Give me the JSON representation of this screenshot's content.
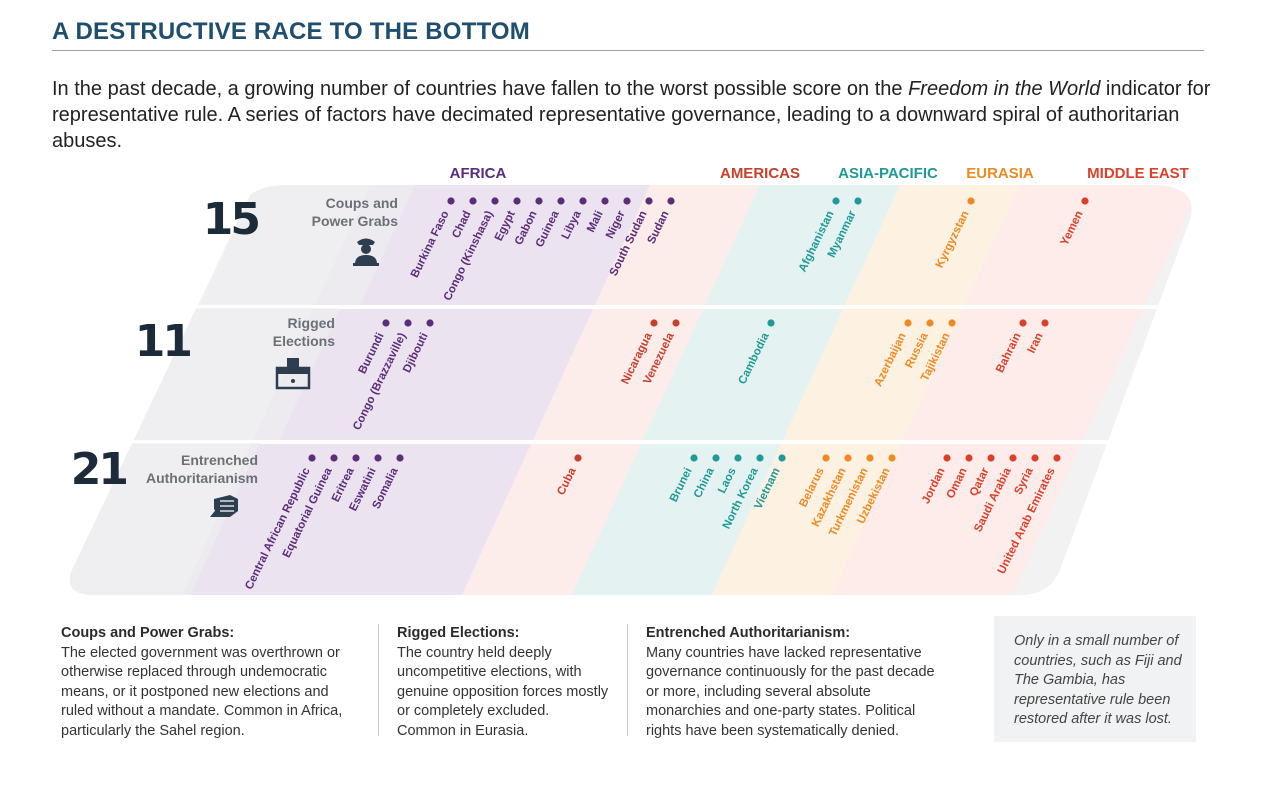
{
  "title": "A DESTRUCTIVE RACE TO THE BOTTOM",
  "intro": {
    "before": "In the past decade, a growing number of countries have fallen to the worst possible score on the ",
    "emph": "Freedom in the World",
    "after": " indicator for representative rule. A series of factors have decimated representative governance, leading to a downward spiral of authoritarian abuses."
  },
  "colors": {
    "africa": "#5b2d7a",
    "americas": "#c8402c",
    "asia": "#1f9a96",
    "eurasia": "#ee8a22",
    "middle_east": "#d9412b",
    "count": "#1c2b3a",
    "rowlabel": "#6b7077"
  },
  "regions": [
    {
      "key": "africa",
      "label": "AFRICA"
    },
    {
      "key": "americas",
      "label": "AMERICAS"
    },
    {
      "key": "asia",
      "label": "ASIA-PACIFIC"
    },
    {
      "key": "eurasia",
      "label": "EURASIA"
    },
    {
      "key": "middle_east",
      "label": "MIDDLE EAST"
    }
  ],
  "rows": [
    {
      "count": "15",
      "label_lines": [
        "Coups and",
        "Power Grabs"
      ],
      "icon": "soldier-icon",
      "countries": {
        "africa": [
          "Burkina Faso",
          "Chad",
          "Congo (Kinshasa)",
          "Egypt",
          "Gabon",
          "Guinea",
          "Libya",
          "Mali",
          "Niger",
          "South Sudan",
          "Sudan"
        ],
        "americas": [],
        "asia": [
          "Afghanistan",
          "Myanmar"
        ],
        "eurasia": [
          "Kyrgyzstan"
        ],
        "middle_east": [
          "Yemen"
        ]
      }
    },
    {
      "count": "11",
      "label_lines": [
        "Rigged",
        "Elections"
      ],
      "icon": "ballot-box-icon",
      "countries": {
        "africa": [
          "Burundi",
          "Congo (Brazzaville)",
          "Djibouti"
        ],
        "americas": [
          "Nicaragua",
          "Venezuela"
        ],
        "asia": [
          "Cambodia"
        ],
        "eurasia": [
          "Azerbaijan",
          "Russia",
          "Tajikistan"
        ],
        "middle_east": [
          "Bahrain",
          "Iran"
        ]
      }
    },
    {
      "count": "21",
      "label_lines": [
        "Entrenched",
        "Authoritarianism"
      ],
      "icon": "fist-icon",
      "countries": {
        "africa": [
          "Central African Republic",
          "Equatorial Guinea",
          "Eritrea",
          "Eswatini",
          "Somalia"
        ],
        "americas": [
          "Cuba"
        ],
        "asia": [
          "Brunei",
          "China",
          "Laos",
          "North Korea",
          "Vietnam"
        ],
        "eurasia": [
          "Belarus",
          "Kazakhstan",
          "Turkmenistan",
          "Uzbekistan"
        ],
        "middle_east": [
          "Jordan",
          "Oman",
          "Qatar",
          "Saudi Arabia",
          "Syria",
          "United Arab Emirates"
        ]
      }
    }
  ],
  "notes": [
    {
      "heading": "Coups and Power Grabs:",
      "text": "The elected government was overthrown or otherwise replaced through undemocratic means, or it postponed new elections and ruled without a mandate. Common in Africa, particularly the Sahel region."
    },
    {
      "heading": "Rigged Elections:",
      "text": "The country held deeply uncompetitive elections, with genuine opposition forces mostly or completely excluded. Common in Eurasia."
    },
    {
      "heading": "Entrenched Authoritarianism:",
      "text": "Many countries have lacked representative governance continuously for the past decade or more, including several absolute monarchies and one-party states. Political rights have been systematically denied."
    }
  ],
  "restored_note": "Only in a small number of countries, such as Fiji and The Gambia, has representative rule been restored after it was lost."
}
